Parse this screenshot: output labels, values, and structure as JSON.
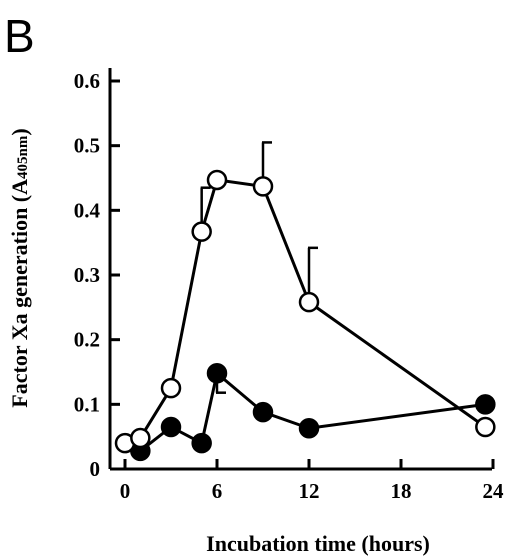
{
  "panel_label": "B",
  "chart_data": {
    "type": "line",
    "title": "",
    "xlabel": "Incubation time (hours)",
    "ylabel": "Factor Xa generation (A",
    "ylabel_subscript": "405nm",
    "ylabel_close": ")",
    "xlim": [
      0,
      24.5
    ],
    "ylim": [
      0,
      0.65
    ],
    "x_ticks": [
      0,
      6,
      12,
      18,
      24
    ],
    "y_ticks": [
      0,
      0.1,
      0.2,
      0.3,
      0.4,
      0.5,
      0.6
    ],
    "x_tick_labels": [
      "0",
      "6",
      "12",
      "18",
      "24"
    ],
    "y_tick_labels": [
      "0",
      "0.1",
      "0.2",
      "0.3",
      "0.4",
      "0.5",
      "0.6"
    ],
    "grid": false,
    "series": [
      {
        "marker": "open-circle",
        "x": [
          0,
          1,
          3,
          5,
          6,
          9,
          12,
          23.5
        ],
        "y": [
          0.04,
          0.048,
          0.125,
          0.367,
          0.447,
          0.437,
          0.258,
          0.065
        ],
        "error_upper": [
          null,
          null,
          null,
          0.435,
          null,
          0.505,
          0.342,
          null
        ]
      },
      {
        "marker": "filled-circle",
        "x": [
          1,
          3,
          5,
          6,
          9,
          12,
          23.5
        ],
        "y": [
          0.028,
          0.065,
          0.04,
          0.148,
          0.088,
          0.063,
          0.1
        ],
        "error_lower": [
          null,
          null,
          null,
          0.118,
          null,
          null,
          null
        ]
      }
    ]
  }
}
